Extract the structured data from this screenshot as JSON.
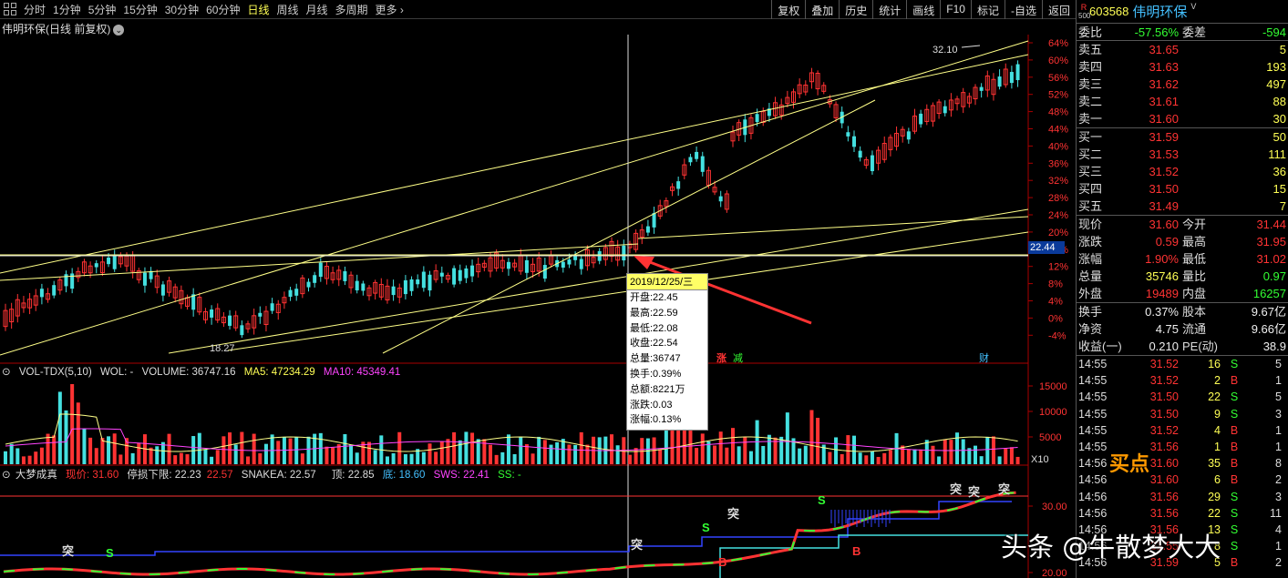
{
  "toolbar": {
    "timeframes": [
      "分时",
      "1分钟",
      "5分钟",
      "15分钟",
      "30分钟",
      "60分钟",
      "日线",
      "周线",
      "月线",
      "多周期",
      "更多"
    ],
    "active_timeframe": "日线",
    "buttons": [
      "复权",
      "叠加",
      "历史",
      "统计",
      "画线",
      "F10",
      "标记",
      "-自选",
      "返回"
    ]
  },
  "chart": {
    "title": "伟明环保(日线 前复权)",
    "pct_axis": [
      "64%",
      "60%",
      "56%",
      "52%",
      "48%",
      "44%",
      "40%",
      "36%",
      "32%",
      "28%",
      "24%",
      "20%",
      "16%",
      "12%",
      "8%",
      "4%",
      "0%",
      "-4%"
    ],
    "current_price_tag": "22.44",
    "high_label": "32.10",
    "low_label": "18.27",
    "markers": {
      "zhang": "涨",
      "jian": "减",
      "cai": "财"
    },
    "tooltip": {
      "date": "2019/12/25/三",
      "lines": [
        "开盘:22.45",
        "最高:22.59",
        "最低:22.08",
        "收盘:22.54",
        "总量:36747",
        "换手:0.39%",
        "总额:8221万",
        "涨跌:0.03",
        "涨幅:0.13%"
      ]
    }
  },
  "volume": {
    "indicator": "VOL-TDX(5,10)",
    "wol": "WOL: -",
    "volume": "VOLUME: 36747.16",
    "ma5": "MA5: 47234.29",
    "ma10": "MA10: 45349.41",
    "axis": [
      "15000",
      "10000",
      "5000"
    ],
    "unit": "X10"
  },
  "dream": {
    "name": "大梦成真",
    "price": "现价: 31.60",
    "stop": "停损下限: 22.23",
    "stop_val": "22.57",
    "snakea": "SNAKEA: 22.57",
    "top": "顶: 22.85",
    "bottom": "底: 18.60",
    "sws": "SWS: 22.41",
    "ss": "SS: -",
    "axis": [
      "30.00",
      "20.00"
    ],
    "marks": {
      "tu": "突",
      "s": "S",
      "b": "B"
    }
  },
  "side": {
    "code": "603568",
    "name": "伟明环保",
    "sup": "V",
    "mark_r": "R",
    "mark_500": "500",
    "weibi": {
      "l": "委比",
      "v": "-57.56%",
      "l2": "委差",
      "v2": "-594"
    },
    "asks": [
      {
        "l": "卖五",
        "p": "31.65",
        "q": "5"
      },
      {
        "l": "卖四",
        "p": "31.63",
        "q": "193"
      },
      {
        "l": "卖三",
        "p": "31.62",
        "q": "497"
      },
      {
        "l": "卖二",
        "p": "31.61",
        "q": "88"
      },
      {
        "l": "卖一",
        "p": "31.60",
        "q": "30"
      }
    ],
    "bids": [
      {
        "l": "买一",
        "p": "31.59",
        "q": "50"
      },
      {
        "l": "买二",
        "p": "31.53",
        "q": "111"
      },
      {
        "l": "买三",
        "p": "31.52",
        "q": "36"
      },
      {
        "l": "买四",
        "p": "31.50",
        "q": "15"
      },
      {
        "l": "买五",
        "p": "31.49",
        "q": "7"
      }
    ],
    "quote": [
      {
        "l": "现价",
        "v": "31.60",
        "vc": "red",
        "l2": "今开",
        "v2": "31.44",
        "v2c": "red"
      },
      {
        "l": "涨跌",
        "v": "0.59",
        "vc": "red",
        "l2": "最高",
        "v2": "31.95",
        "v2c": "red"
      },
      {
        "l": "涨幅",
        "v": "1.90%",
        "vc": "red",
        "l2": "最低",
        "v2": "31.02",
        "v2c": "red"
      },
      {
        "l": "总量",
        "v": "35746",
        "vc": "yellow",
        "l2": "量比",
        "v2": "0.97",
        "v2c": "green"
      },
      {
        "l": "外盘",
        "v": "19489",
        "vc": "red",
        "l2": "内盘",
        "v2": "16257",
        "v2c": "green"
      }
    ],
    "fin": [
      {
        "l": "换手",
        "v": "0.37%",
        "l2": "股本",
        "v2": "9.67亿"
      },
      {
        "l": "净资",
        "v": "4.75",
        "l2": "流通",
        "v2": "9.66亿"
      },
      {
        "l": "收益(一)",
        "v": "0.210",
        "l2": "PE(动)",
        "v2": "38.9"
      }
    ],
    "ticks": [
      {
        "t": "14:55",
        "p": "31.52",
        "pc": "red",
        "q": "16",
        "d": "S",
        "n": "5"
      },
      {
        "t": "14:55",
        "p": "31.52",
        "pc": "red",
        "q": "2",
        "d": "B",
        "n": "1"
      },
      {
        "t": "14:55",
        "p": "31.50",
        "pc": "red",
        "q": "22",
        "d": "S",
        "n": "5"
      },
      {
        "t": "14:55",
        "p": "31.50",
        "pc": "red",
        "q": "9",
        "d": "S",
        "n": "3"
      },
      {
        "t": "14:55",
        "p": "31.52",
        "pc": "red",
        "q": "4",
        "d": "B",
        "n": "1"
      },
      {
        "t": "14:55",
        "p": "31.56",
        "pc": "red",
        "q": "1",
        "d": "B",
        "n": "1"
      },
      {
        "t": "14:56",
        "p": "31.60",
        "pc": "red",
        "q": "35",
        "d": "B",
        "n": "8"
      },
      {
        "t": "14:56",
        "p": "31.60",
        "pc": "red",
        "q": "6",
        "d": "B",
        "n": "2"
      },
      {
        "t": "14:56",
        "p": "31.56",
        "pc": "red",
        "q": "29",
        "d": "S",
        "n": "3"
      },
      {
        "t": "14:56",
        "p": "31.56",
        "pc": "red",
        "q": "22",
        "d": "S",
        "n": "11"
      },
      {
        "t": "14:56",
        "p": "31.56",
        "pc": "red",
        "q": "13",
        "d": "S",
        "n": "4"
      },
      {
        "t": "14:56",
        "p": "31.55",
        "pc": "red",
        "q": "8",
        "d": "S",
        "n": "1"
      },
      {
        "t": "14:56",
        "p": "31.59",
        "pc": "red",
        "q": "5",
        "d": "B",
        "n": "2"
      }
    ]
  },
  "overlay": {
    "buy_label": "买点",
    "watermark": "头条 @牛散梦大大"
  }
}
